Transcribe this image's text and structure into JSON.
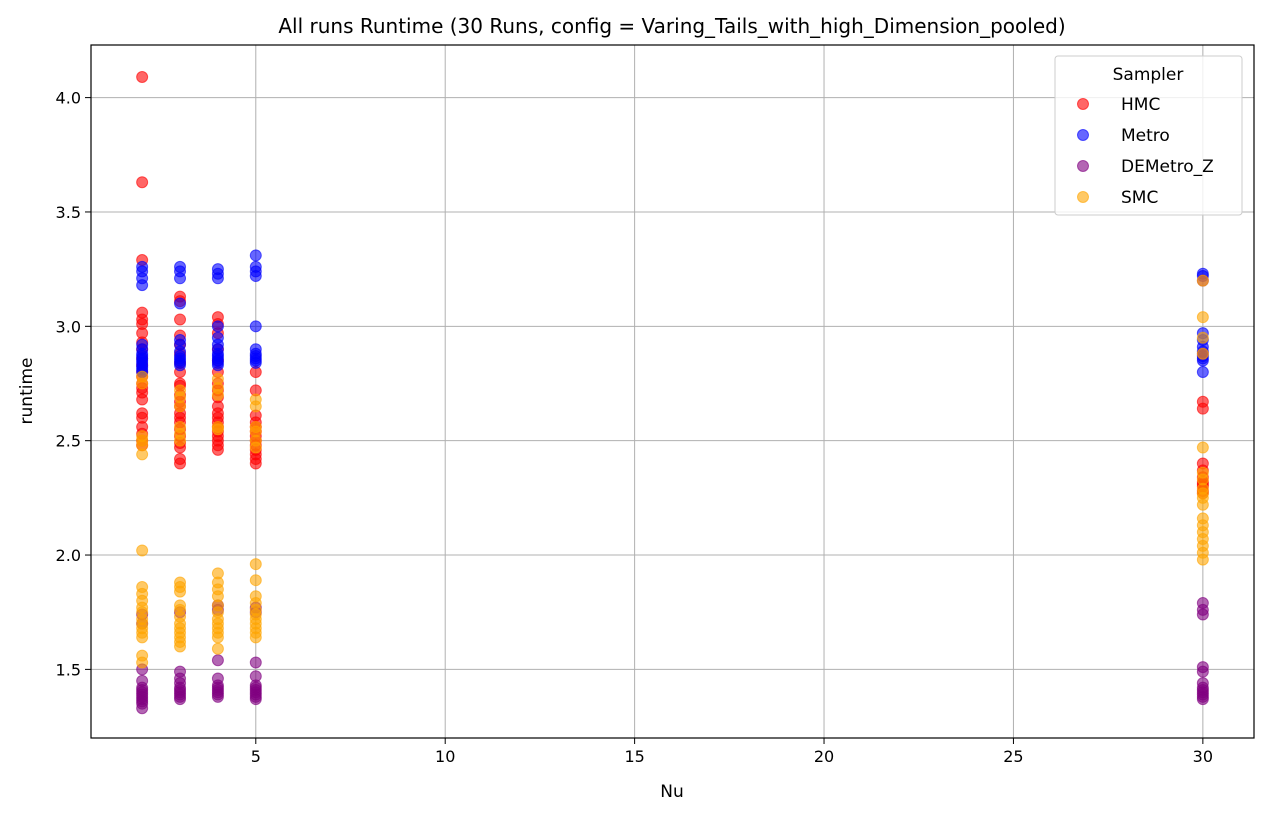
{
  "chart_data": {
    "type": "scatter",
    "title": "All runs Runtime (30 Runs, config = Varing_Tails_with_high_Dimension_pooled)",
    "xlabel": "Nu",
    "ylabel": "runtime",
    "xlim": [
      0.65,
      31.35
    ],
    "ylim": [
      1.2,
      4.23
    ],
    "xticks": [
      5,
      10,
      15,
      20,
      25,
      30
    ],
    "yticks": [
      1.5,
      2.0,
      2.5,
      3.0,
      3.5,
      4.0
    ],
    "ytick_labels": [
      "1.5",
      "2.0",
      "2.5",
      "3.0",
      "3.5",
      "4.0"
    ],
    "grid": true,
    "legend": {
      "title": "Sampler",
      "position": "top-right"
    },
    "series": [
      {
        "name": "HMC",
        "color": "#ff0000",
        "points": [
          [
            2,
            4.09
          ],
          [
            2,
            3.63
          ],
          [
            2,
            3.29
          ],
          [
            2,
            3.06
          ],
          [
            2,
            3.03
          ],
          [
            2,
            3.01
          ],
          [
            2,
            2.97
          ],
          [
            2,
            2.93
          ],
          [
            2,
            2.9
          ],
          [
            2,
            2.86
          ],
          [
            2,
            2.83
          ],
          [
            2,
            2.8
          ],
          [
            2,
            2.78
          ],
          [
            2,
            2.75
          ],
          [
            2,
            2.73
          ],
          [
            2,
            2.71
          ],
          [
            2,
            2.68
          ],
          [
            2,
            2.62
          ],
          [
            2,
            2.6
          ],
          [
            2,
            2.56
          ],
          [
            2,
            2.53
          ],
          [
            2,
            2.5
          ],
          [
            2,
            2.48
          ],
          [
            3,
            3.13
          ],
          [
            3,
            3.11
          ],
          [
            3,
            3.03
          ],
          [
            3,
            2.96
          ],
          [
            3,
            2.92
          ],
          [
            3,
            2.88
          ],
          [
            3,
            2.84
          ],
          [
            3,
            2.8
          ],
          [
            3,
            2.75
          ],
          [
            3,
            2.74
          ],
          [
            3,
            2.7
          ],
          [
            3,
            2.67
          ],
          [
            3,
            2.65
          ],
          [
            3,
            2.62
          ],
          [
            3,
            2.6
          ],
          [
            3,
            2.58
          ],
          [
            3,
            2.55
          ],
          [
            3,
            2.52
          ],
          [
            3,
            2.49
          ],
          [
            3,
            2.47
          ],
          [
            3,
            2.42
          ],
          [
            3,
            2.4
          ],
          [
            4,
            3.04
          ],
          [
            4,
            3.01
          ],
          [
            4,
            2.97
          ],
          [
            4,
            2.9
          ],
          [
            4,
            2.85
          ],
          [
            4,
            2.8
          ],
          [
            4,
            2.75
          ],
          [
            4,
            2.72
          ],
          [
            4,
            2.69
          ],
          [
            4,
            2.65
          ],
          [
            4,
            2.62
          ],
          [
            4,
            2.6
          ],
          [
            4,
            2.58
          ],
          [
            4,
            2.56
          ],
          [
            4,
            2.54
          ],
          [
            4,
            2.52
          ],
          [
            4,
            2.5
          ],
          [
            4,
            2.48
          ],
          [
            4,
            2.46
          ],
          [
            5,
            2.8
          ],
          [
            5,
            2.72
          ],
          [
            5,
            2.61
          ],
          [
            5,
            2.58
          ],
          [
            5,
            2.56
          ],
          [
            5,
            2.54
          ],
          [
            5,
            2.52
          ],
          [
            5,
            2.5
          ],
          [
            5,
            2.48
          ],
          [
            5,
            2.46
          ],
          [
            5,
            2.44
          ],
          [
            5,
            2.42
          ],
          [
            5,
            2.4
          ],
          [
            30,
            2.67
          ],
          [
            30,
            2.64
          ],
          [
            30,
            2.4
          ],
          [
            30,
            2.37
          ],
          [
            30,
            2.34
          ],
          [
            30,
            2.32
          ],
          [
            30,
            2.31
          ],
          [
            30,
            2.3
          ],
          [
            30,
            2.28
          ],
          [
            30,
            2.27
          ]
        ]
      },
      {
        "name": "Metro",
        "color": "#0000ff",
        "points": [
          [
            2,
            3.26
          ],
          [
            2,
            3.24
          ],
          [
            2,
            3.21
          ],
          [
            2,
            3.18
          ],
          [
            2,
            2.92
          ],
          [
            2,
            2.9
          ],
          [
            2,
            2.88
          ],
          [
            2,
            2.87
          ],
          [
            2,
            2.86
          ],
          [
            2,
            2.85
          ],
          [
            2,
            2.84
          ],
          [
            2,
            2.83
          ],
          [
            2,
            2.82
          ],
          [
            2,
            2.81
          ],
          [
            2,
            2.8
          ],
          [
            3,
            3.26
          ],
          [
            3,
            3.24
          ],
          [
            3,
            3.21
          ],
          [
            3,
            3.1
          ],
          [
            3,
            2.94
          ],
          [
            3,
            2.92
          ],
          [
            3,
            2.89
          ],
          [
            3,
            2.87
          ],
          [
            3,
            2.86
          ],
          [
            3,
            2.85
          ],
          [
            3,
            2.84
          ],
          [
            3,
            2.83
          ],
          [
            4,
            3.25
          ],
          [
            4,
            3.23
          ],
          [
            4,
            3.21
          ],
          [
            4,
            3.0
          ],
          [
            4,
            2.95
          ],
          [
            4,
            2.92
          ],
          [
            4,
            2.9
          ],
          [
            4,
            2.88
          ],
          [
            4,
            2.87
          ],
          [
            4,
            2.86
          ],
          [
            4,
            2.85
          ],
          [
            4,
            2.84
          ],
          [
            4,
            2.83
          ],
          [
            5,
            3.31
          ],
          [
            5,
            3.26
          ],
          [
            5,
            3.24
          ],
          [
            5,
            3.22
          ],
          [
            5,
            3.0
          ],
          [
            5,
            2.9
          ],
          [
            5,
            2.88
          ],
          [
            5,
            2.87
          ],
          [
            5,
            2.86
          ],
          [
            5,
            2.85
          ],
          [
            5,
            2.84
          ],
          [
            30,
            3.23
          ],
          [
            30,
            3.22
          ],
          [
            30,
            2.97
          ],
          [
            30,
            2.94
          ],
          [
            30,
            2.91
          ],
          [
            30,
            2.89
          ],
          [
            30,
            2.87
          ],
          [
            30,
            2.86
          ],
          [
            30,
            2.85
          ],
          [
            30,
            2.8
          ]
        ]
      },
      {
        "name": "DEMetro_Z",
        "color": "#800080",
        "points": [
          [
            2,
            1.5
          ],
          [
            2,
            1.45
          ],
          [
            2,
            1.42
          ],
          [
            2,
            1.41
          ],
          [
            2,
            1.4
          ],
          [
            2,
            1.39
          ],
          [
            2,
            1.38
          ],
          [
            2,
            1.37
          ],
          [
            2,
            1.36
          ],
          [
            2,
            1.35
          ],
          [
            2,
            1.33
          ],
          [
            2,
            1.7
          ],
          [
            2,
            1.74
          ],
          [
            3,
            1.49
          ],
          [
            3,
            1.46
          ],
          [
            3,
            1.44
          ],
          [
            3,
            1.42
          ],
          [
            3,
            1.41
          ],
          [
            3,
            1.4
          ],
          [
            3,
            1.39
          ],
          [
            3,
            1.38
          ],
          [
            3,
            1.37
          ],
          [
            3,
            1.75
          ],
          [
            4,
            1.78
          ],
          [
            4,
            1.76
          ],
          [
            4,
            1.54
          ],
          [
            4,
            1.46
          ],
          [
            4,
            1.43
          ],
          [
            4,
            1.42
          ],
          [
            4,
            1.41
          ],
          [
            4,
            1.4
          ],
          [
            4,
            1.39
          ],
          [
            4,
            1.38
          ],
          [
            5,
            1.77
          ],
          [
            5,
            1.75
          ],
          [
            5,
            1.53
          ],
          [
            5,
            1.47
          ],
          [
            5,
            1.43
          ],
          [
            5,
            1.42
          ],
          [
            5,
            1.41
          ],
          [
            5,
            1.4
          ],
          [
            5,
            1.39
          ],
          [
            5,
            1.38
          ],
          [
            5,
            1.37
          ],
          [
            30,
            3.2
          ],
          [
            30,
            2.88
          ],
          [
            30,
            1.79
          ],
          [
            30,
            1.76
          ],
          [
            30,
            1.74
          ],
          [
            30,
            1.51
          ],
          [
            30,
            1.49
          ],
          [
            30,
            1.44
          ],
          [
            30,
            1.42
          ],
          [
            30,
            1.41
          ],
          [
            30,
            1.4
          ],
          [
            30,
            1.39
          ],
          [
            30,
            1.38
          ],
          [
            30,
            1.37
          ]
        ]
      },
      {
        "name": "SMC",
        "color": "#ffa500",
        "points": [
          [
            2,
            2.78
          ],
          [
            2,
            2.75
          ],
          [
            2,
            2.52
          ],
          [
            2,
            2.5
          ],
          [
            2,
            2.48
          ],
          [
            2,
            2.44
          ],
          [
            2,
            2.02
          ],
          [
            2,
            1.86
          ],
          [
            2,
            1.83
          ],
          [
            2,
            1.8
          ],
          [
            2,
            1.77
          ],
          [
            2,
            1.75
          ],
          [
            2,
            1.72
          ],
          [
            2,
            1.7
          ],
          [
            2,
            1.68
          ],
          [
            2,
            1.66
          ],
          [
            2,
            1.64
          ],
          [
            2,
            1.56
          ],
          [
            2,
            1.53
          ],
          [
            3,
            2.72
          ],
          [
            3,
            2.69
          ],
          [
            3,
            2.65
          ],
          [
            3,
            2.56
          ],
          [
            3,
            2.53
          ],
          [
            3,
            2.5
          ],
          [
            3,
            1.88
          ],
          [
            3,
            1.86
          ],
          [
            3,
            1.84
          ],
          [
            3,
            1.78
          ],
          [
            3,
            1.76
          ],
          [
            3,
            1.73
          ],
          [
            3,
            1.7
          ],
          [
            3,
            1.68
          ],
          [
            3,
            1.66
          ],
          [
            3,
            1.64
          ],
          [
            3,
            1.62
          ],
          [
            3,
            1.6
          ],
          [
            4,
            2.77
          ],
          [
            4,
            2.73
          ],
          [
            4,
            2.7
          ],
          [
            4,
            2.56
          ],
          [
            4,
            2.55
          ],
          [
            4,
            1.92
          ],
          [
            4,
            1.88
          ],
          [
            4,
            1.85
          ],
          [
            4,
            1.82
          ],
          [
            4,
            1.78
          ],
          [
            4,
            1.75
          ],
          [
            4,
            1.72
          ],
          [
            4,
            1.7
          ],
          [
            4,
            1.68
          ],
          [
            4,
            1.66
          ],
          [
            4,
            1.64
          ],
          [
            4,
            1.59
          ],
          [
            5,
            2.68
          ],
          [
            5,
            2.65
          ],
          [
            5,
            2.56
          ],
          [
            5,
            2.54
          ],
          [
            5,
            2.5
          ],
          [
            5,
            2.47
          ],
          [
            5,
            1.96
          ],
          [
            5,
            1.89
          ],
          [
            5,
            1.82
          ],
          [
            5,
            1.79
          ],
          [
            5,
            1.76
          ],
          [
            5,
            1.74
          ],
          [
            5,
            1.72
          ],
          [
            5,
            1.7
          ],
          [
            5,
            1.68
          ],
          [
            5,
            1.66
          ],
          [
            5,
            1.64
          ],
          [
            30,
            3.2
          ],
          [
            30,
            3.04
          ],
          [
            30,
            2.95
          ],
          [
            30,
            2.88
          ],
          [
            30,
            2.47
          ],
          [
            30,
            2.36
          ],
          [
            30,
            2.33
          ],
          [
            30,
            2.29
          ],
          [
            30,
            2.27
          ],
          [
            30,
            2.25
          ],
          [
            30,
            2.22
          ],
          [
            30,
            2.16
          ],
          [
            30,
            2.13
          ],
          [
            30,
            2.1
          ],
          [
            30,
            2.07
          ],
          [
            30,
            2.04
          ],
          [
            30,
            2.01
          ],
          [
            30,
            1.98
          ]
        ]
      }
    ]
  }
}
